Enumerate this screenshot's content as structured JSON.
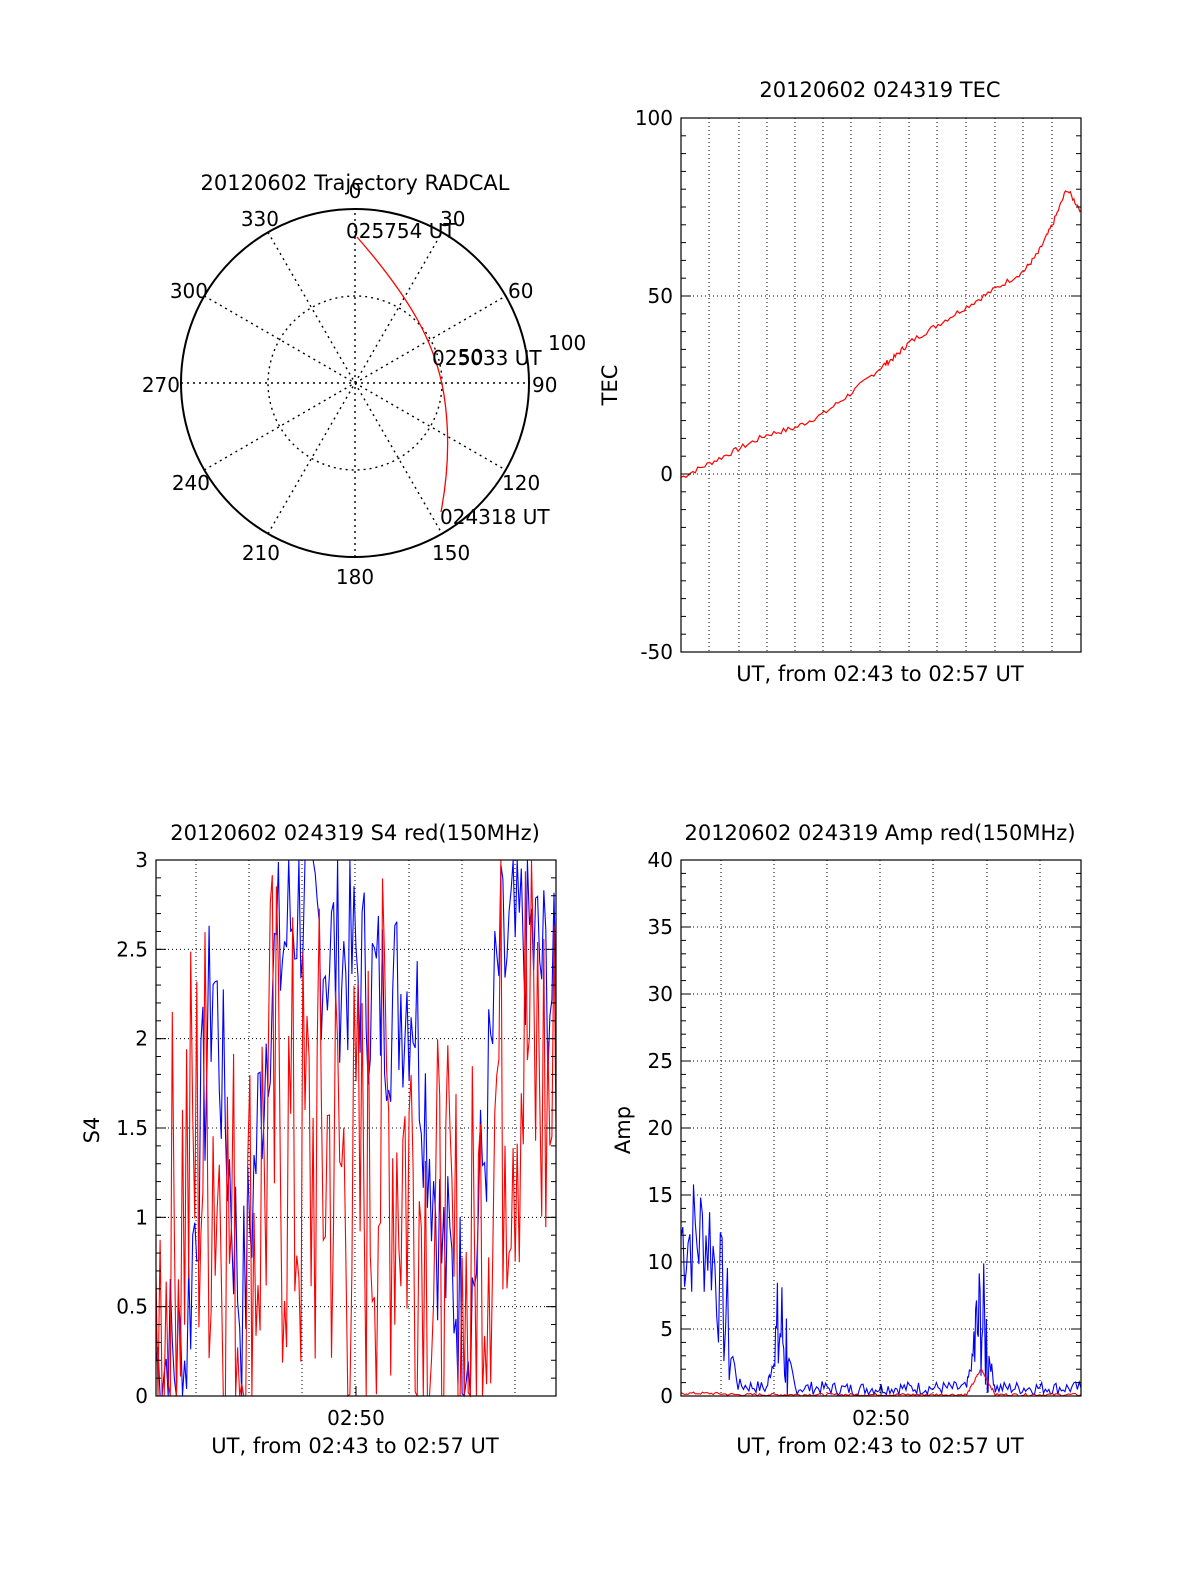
{
  "colors": {
    "red": "#ff0000",
    "blue": "#0000ff",
    "axis": "#000000",
    "grid": "#000000"
  },
  "polar": {
    "title": "20120602 Trajectory RADCAL",
    "azimuth_labels": [
      "0",
      "30",
      "60",
      "90",
      "120",
      "150",
      "180",
      "210",
      "240",
      "270",
      "300",
      "330"
    ],
    "radial_label": "100",
    "mid_radial_label": "50",
    "start_label": "024318 UT",
    "mid_label": "025033 UT",
    "end_label": "025754 UT"
  },
  "chart_data": [
    {
      "type": "line",
      "panel": "tec",
      "title": "20120602 024319 TEC",
      "xlabel": "UT, from 02:43 to 02:57 UT",
      "ylabel": "TEC",
      "ylim": [
        -50,
        100
      ],
      "yticks": [
        "100",
        "50",
        "0",
        "-50"
      ],
      "xlim": [
        "02:43",
        "02:57"
      ],
      "grid": true,
      "series": [
        {
          "color": "red",
          "x": [
            "02:43",
            "02:44",
            "02:45",
            "02:46",
            "02:47",
            "02:48",
            "02:49",
            "02:50",
            "02:50:30",
            "02:51",
            "02:52",
            "02:53",
            "02:54",
            "02:55",
            "02:55:30",
            "02:56",
            "02:56:30",
            "02:57"
          ],
          "y": [
            -1,
            3,
            7,
            11,
            13,
            17,
            23,
            30,
            33,
            37,
            42,
            47,
            52,
            57,
            62,
            70,
            80,
            74
          ]
        }
      ]
    },
    {
      "type": "line",
      "panel": "s4",
      "title": "20120602 024319 S4 red(150MHz)",
      "xlabel": "UT, from 02:43 to 02:57 UT",
      "ylabel": "S4",
      "ylim": [
        0,
        3
      ],
      "yticks": [
        "3",
        "2.5",
        "2",
        "1.5",
        "1",
        "0.5",
        "0"
      ],
      "xticks": [
        "02:50"
      ],
      "xlim": [
        "02:43",
        "02:57"
      ],
      "grid": true,
      "series": [
        {
          "color": "blue",
          "x": [
            "02:43",
            "02:44",
            "02:45",
            "02:46",
            "02:47",
            "02:48",
            "02:49",
            "02:50",
            "02:51",
            "02:52",
            "02:53",
            "02:54",
            "02:55",
            "02:56",
            "02:57"
          ],
          "y": [
            0.2,
            0.2,
            2.4,
            0.42,
            2.3,
            2.8,
            2.5,
            2.4,
            2.2,
            2.3,
            0.8,
            0.4,
            2.4,
            2.6,
            2.2
          ]
        },
        {
          "color": "red",
          "x": [
            "02:43",
            "02:44",
            "02:45",
            "02:46",
            "02:47",
            "02:48",
            "02:49",
            "02:50",
            "02:51",
            "02:52",
            "02:53",
            "02:54",
            "02:55",
            "02:56",
            "02:57"
          ],
          "y": [
            0.2,
            1.2,
            1.5,
            0.4,
            1.6,
            1.2,
            1.4,
            1.0,
            1.5,
            1.3,
            0.5,
            0.4,
            1.8,
            2.0,
            1.5
          ]
        }
      ]
    },
    {
      "type": "line",
      "panel": "amp",
      "title": "20120602 024319 Amp red(150MHz)",
      "xlabel": "UT, from 02:43 to 02:57 UT",
      "ylabel": "Amp",
      "ylim": [
        0,
        40
      ],
      "yticks": [
        "40",
        "35",
        "30",
        "25",
        "20",
        "15",
        "10",
        "5",
        "0"
      ],
      "xticks": [
        "02:50"
      ],
      "xlim": [
        "02:43",
        "02:57"
      ],
      "grid": true,
      "series": [
        {
          "color": "blue",
          "x": [
            "02:43",
            "02:44",
            "02:45",
            "02:46",
            "02:46:30",
            "02:47",
            "02:48",
            "02:49",
            "02:50",
            "02:51",
            "02:52",
            "02:53",
            "02:53:30",
            "02:54",
            "02:55",
            "02:56",
            "02:57"
          ],
          "y": [
            12,
            12,
            0.8,
            0.6,
            5,
            0.6,
            0.6,
            0.5,
            0.6,
            0.6,
            0.6,
            0.6,
            6,
            0.6,
            0.6,
            0.6,
            0.6
          ]
        },
        {
          "color": "red",
          "x": [
            "02:43",
            "02:44",
            "02:45",
            "02:46",
            "02:47",
            "02:48",
            "02:49",
            "02:50",
            "02:51",
            "02:52",
            "02:53",
            "02:53:30",
            "02:54",
            "02:55",
            "02:56",
            "02:57"
          ],
          "y": [
            0.2,
            0.2,
            0.1,
            0.1,
            0.1,
            0.1,
            0.1,
            0.1,
            0.1,
            0.1,
            0.1,
            2,
            0.1,
            0.1,
            0.1,
            0.1
          ]
        }
      ]
    }
  ]
}
